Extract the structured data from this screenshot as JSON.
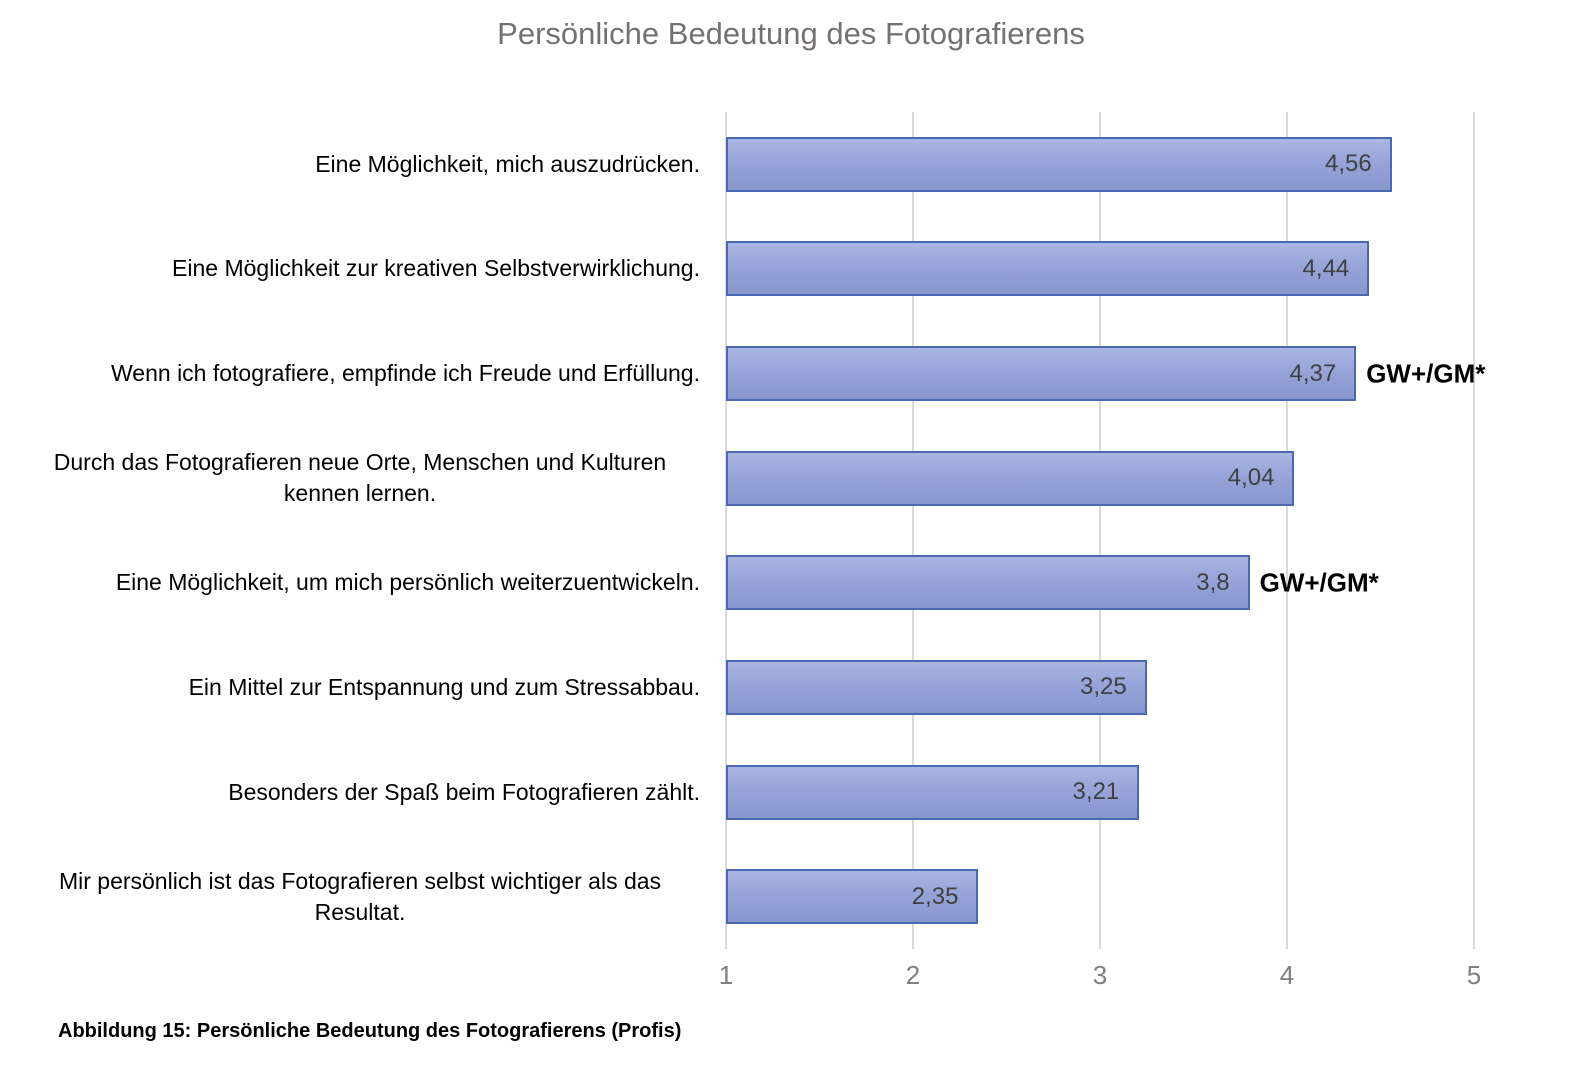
{
  "title": "Persönliche Bedeutung des Fotografierens",
  "caption": "Abbildung 15: Persönliche Bedeutung des Fotografierens (Profis)",
  "chart_data": {
    "type": "bar",
    "orientation": "horizontal",
    "title": "Persönliche Bedeutung des Fotografierens",
    "categories": [
      "Eine Möglichkeit, mich auszudrücken.",
      "Eine Möglichkeit zur kreativen Selbstverwirklichung.",
      "Wenn ich fotografiere, empfinde ich Freude und Erfüllung.",
      "Durch das Fotografieren neue Orte, Menschen und Kulturen kennen lernen.",
      "Eine Möglichkeit, um mich persönlich weiterzuentwickeln.",
      "Ein Mittel zur Entspannung und zum Stressabbau.",
      "Besonders der Spaß beim Fotografieren zählt.",
      "Mir persönlich ist das Fotografieren selbst wichtiger als das Resultat."
    ],
    "values": [
      4.56,
      4.44,
      4.37,
      4.04,
      3.8,
      3.25,
      3.21,
      2.35
    ],
    "value_labels": [
      "4,56",
      "4,44",
      "4,37",
      "4,04",
      "3,8",
      "3,25",
      "3,21",
      "2,35"
    ],
    "annotations": [
      {
        "index": 2,
        "text": "GW+/GM*"
      },
      {
        "index": 4,
        "text": "GW+/GM*"
      }
    ],
    "xlim": [
      1,
      5
    ],
    "x_ticks": [
      "1",
      "2",
      "3",
      "4",
      "5"
    ],
    "grid": true,
    "legend": false,
    "xlabel": "",
    "ylabel": "",
    "colors": {
      "bar_fill": "#96a4d9",
      "bar_fill_light": "#aab6e2",
      "bar_fill_dark": "#8897ce",
      "bar_border": "#4a69b1",
      "gridline": "#d9d9d9",
      "title": "#767171",
      "axis_label": "#7f7f7f",
      "value_label": "#404040",
      "category_label": "#000000"
    }
  }
}
